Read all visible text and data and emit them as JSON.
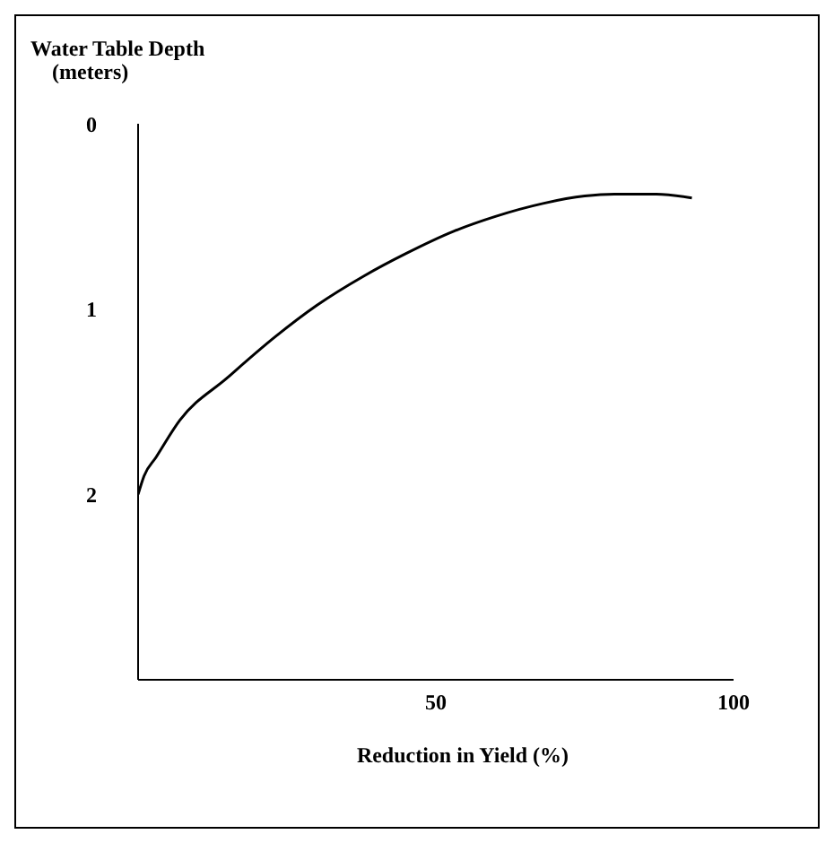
{
  "chart_data": {
    "type": "line",
    "ylabel": "Water Table Depth\n(meters)",
    "xlabel": "Reduction in Yield (%)",
    "x": [
      0,
      1,
      3,
      7,
      15,
      23,
      30,
      38,
      45,
      53,
      60,
      68,
      75,
      80,
      87,
      93
    ],
    "series": [
      {
        "color": "#000000",
        "values": [
          2,
          1.9,
          1.8,
          1.6,
          1.37,
          1.15,
          0.98,
          0.82,
          0.7,
          0.58,
          0.5,
          0.43,
          0.39,
          0.38,
          0.38,
          0.4
        ]
      }
    ],
    "xlim": [
      0,
      100
    ],
    "xticks": [
      50,
      100
    ],
    "ylim": [
      3,
      0
    ],
    "yticks": [
      0,
      1,
      2
    ],
    "grid": false,
    "legend": false,
    "marker": "none",
    "line_style": "solid"
  }
}
